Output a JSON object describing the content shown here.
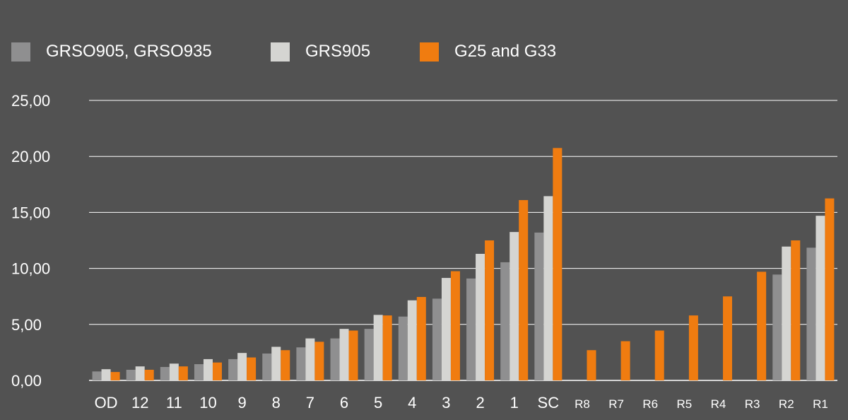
{
  "chart_data": {
    "type": "bar",
    "title": "",
    "xlabel": "",
    "ylabel": "",
    "ylim": [
      0,
      25
    ],
    "yticks": [
      0,
      5,
      10,
      15,
      20,
      25
    ],
    "ytick_labels": [
      "0,00",
      "5,00",
      "10,00",
      "15,00",
      "20,00",
      "25,00"
    ],
    "grid": true,
    "legend_position": "top-left",
    "categories": [
      "OD",
      "12",
      "11",
      "10",
      "9",
      "8",
      "7",
      "6",
      "5",
      "4",
      "3",
      "2",
      "1",
      "SC",
      "R8",
      "R7",
      "R6",
      "R5",
      "R4",
      "R3",
      "R2",
      "R1"
    ],
    "series": [
      {
        "name": "GRSO905, GRSO935",
        "color": "#8f8f90",
        "values": [
          0.8,
          0.95,
          1.2,
          1.45,
          1.9,
          2.4,
          2.95,
          3.75,
          4.6,
          5.7,
          7.3,
          9.1,
          10.55,
          13.2,
          null,
          null,
          null,
          null,
          null,
          null,
          9.45,
          11.85
        ]
      },
      {
        "name": "GRS905",
        "color": "#d5d5d2",
        "values": [
          1.0,
          1.25,
          1.5,
          1.9,
          2.45,
          3.0,
          3.75,
          4.6,
          5.85,
          7.15,
          9.15,
          11.3,
          13.25,
          16.45,
          null,
          null,
          null,
          null,
          null,
          null,
          11.95,
          14.7
        ]
      },
      {
        "name": "G25 and G33",
        "color": "#f07c10",
        "values": [
          0.75,
          0.95,
          1.25,
          1.6,
          2.05,
          2.7,
          3.45,
          4.45,
          5.8,
          7.45,
          9.75,
          12.5,
          16.1,
          20.75,
          2.7,
          3.5,
          4.45,
          5.8,
          7.5,
          9.7,
          12.5,
          16.25
        ]
      }
    ]
  }
}
